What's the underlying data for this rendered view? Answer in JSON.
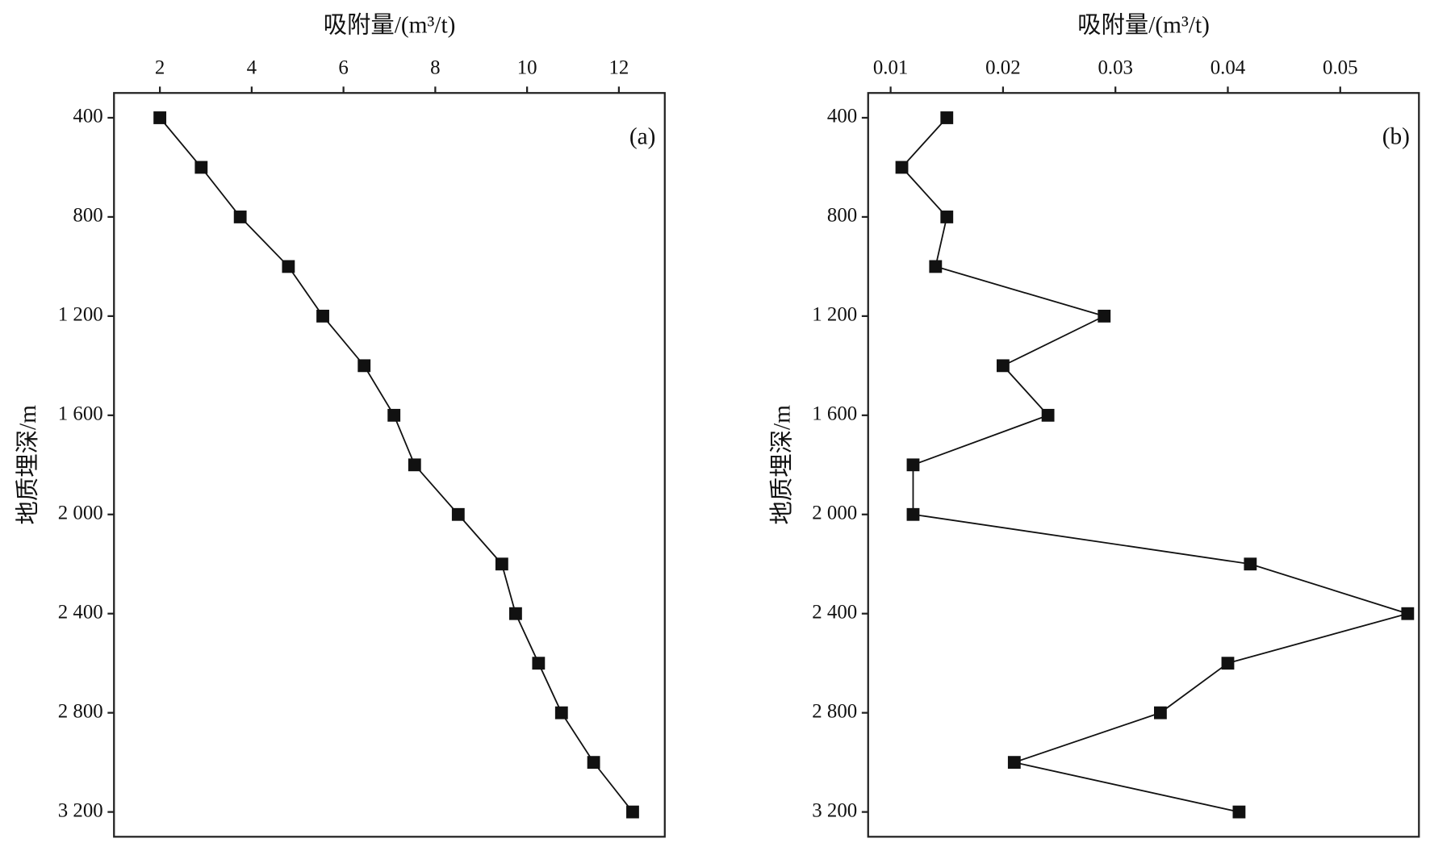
{
  "chart_data": [
    {
      "type": "line",
      "panel_label": "(a)",
      "x_label": "吸附量/(m³/t)",
      "y_label": "地质埋深/m",
      "x": [
        2.0,
        2.9,
        3.75,
        4.8,
        5.55,
        6.45,
        7.1,
        7.55,
        8.5,
        9.45,
        9.75,
        10.25,
        10.75,
        11.45,
        12.3
      ],
      "values": [
        400,
        600,
        800,
        1000,
        1200,
        1400,
        1600,
        1800,
        2000,
        2200,
        2400,
        2600,
        2800,
        3000,
        3200
      ],
      "color": "#111111",
      "xlim": [
        1,
        13
      ],
      "xticks": [
        2,
        4,
        6,
        8,
        10,
        12
      ],
      "ylim": [
        300,
        3300
      ],
      "y_inverted": true,
      "yticks": [
        400,
        800,
        {
          "value": 1200,
          "label": "1 200"
        },
        {
          "value": 1600,
          "label": "1 600"
        },
        {
          "value": 2000,
          "label": "2 000"
        },
        {
          "value": 2400,
          "label": "2 400"
        },
        {
          "value": 2800,
          "label": "2 800"
        },
        {
          "value": 3200,
          "label": "3 200"
        }
      ]
    },
    {
      "type": "line",
      "panel_label": "(b)",
      "x_label": "吸附量/(m³/t)",
      "y_label": "地质埋深/m",
      "x": [
        0.015,
        0.011,
        0.015,
        0.014,
        0.029,
        0.02,
        0.024,
        0.012,
        0.012,
        0.042,
        0.056,
        0.04,
        0.034,
        0.021,
        0.041
      ],
      "values": [
        400,
        600,
        800,
        1000,
        1200,
        1400,
        1600,
        1800,
        2000,
        2200,
        2400,
        2600,
        2800,
        3000,
        3200
      ],
      "color": "#111111",
      "xlim": [
        0.008,
        0.057
      ],
      "xticks": [
        0.01,
        0.02,
        0.03,
        0.04,
        0.05
      ],
      "ylim": [
        300,
        3300
      ],
      "y_inverted": true,
      "yticks": [
        400,
        800,
        {
          "value": 1200,
          "label": "1 200"
        },
        {
          "value": 1600,
          "label": "1 600"
        },
        {
          "value": 2000,
          "label": "2 000"
        },
        {
          "value": 2400,
          "label": "2 400"
        },
        {
          "value": 2800,
          "label": "2 800"
        },
        {
          "value": 3200,
          "label": "3 200"
        }
      ]
    }
  ]
}
